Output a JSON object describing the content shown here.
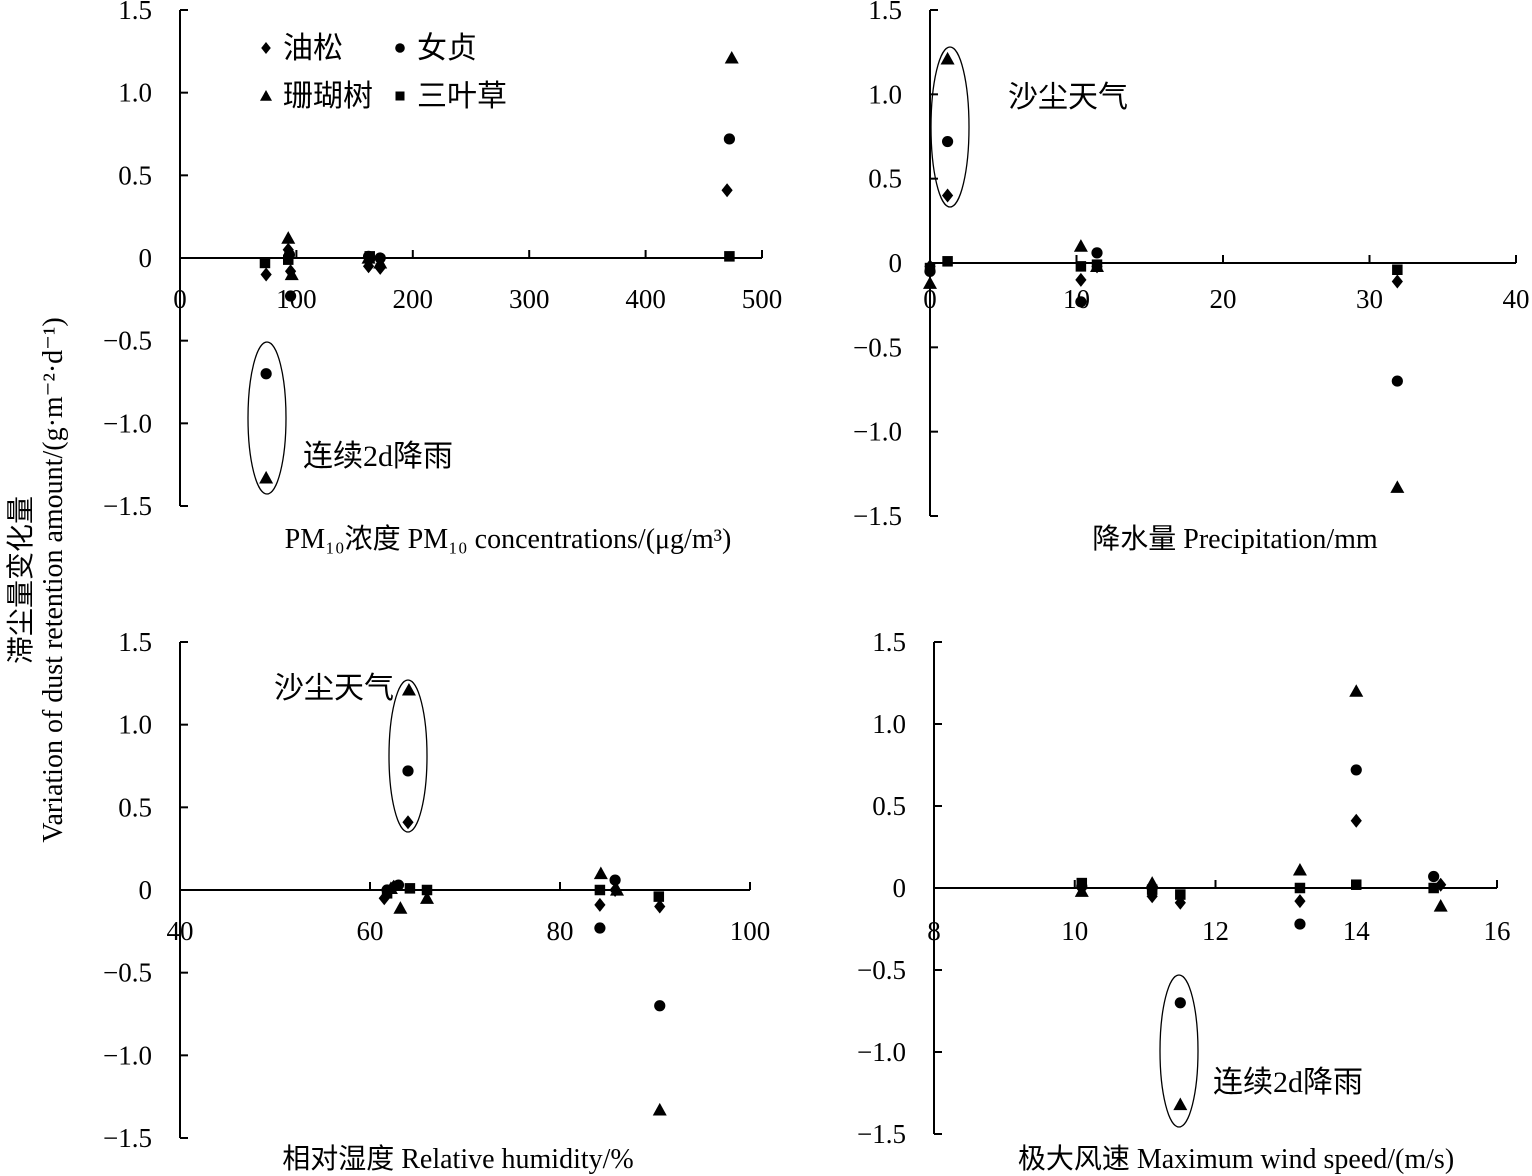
{
  "figure": {
    "ylabel_cn": "滞尘量变化量",
    "ylabel_en": "Variation of dust retention amount/(g·m⁻²·d⁻¹)",
    "legend": [
      {
        "name": "油松",
        "marker": "diamond"
      },
      {
        "name": "女贞",
        "marker": "circle"
      },
      {
        "name": "珊瑚树",
        "marker": "triangle"
      },
      {
        "name": "三叶草",
        "marker": "square"
      }
    ]
  },
  "chart_data": [
    {
      "type": "scatter",
      "xlabel": "PM₁₀浓度 PM₁₀ concentrations/(μg/m³)",
      "xlim": [
        0,
        500
      ],
      "xticks": [
        0,
        100,
        200,
        300,
        400,
        500
      ],
      "ylim": [
        -1.5,
        1.5
      ],
      "yticks": [
        1.5,
        1.0,
        0.5,
        0,
        -0.5,
        -1.0,
        -1.5
      ],
      "ytick_labels": [
        "1.5",
        "1.0",
        "0.5",
        "0",
        "−0.5",
        "−1.0",
        "−1.5"
      ],
      "series": [
        {
          "name": "油松",
          "points": [
            [
              74,
              -0.1
            ],
            [
              93,
              0.05
            ],
            [
              95,
              -0.08
            ],
            [
              162,
              -0.05
            ],
            [
              172,
              -0.06
            ],
            [
              470,
              0.41
            ]
          ]
        },
        {
          "name": "女贞",
          "points": [
            [
              74,
              -0.7
            ],
            [
              95,
              -0.23
            ],
            [
              94,
              0.02
            ],
            [
              162,
              0.01
            ],
            [
              172,
              0.0
            ],
            [
              472,
              0.72
            ]
          ]
        },
        {
          "name": "珊瑚树",
          "points": [
            [
              74,
              -1.33
            ],
            [
              93,
              0.12
            ],
            [
              96,
              -0.1
            ],
            [
              162,
              0.0
            ],
            [
              172,
              -0.03
            ],
            [
              474,
              1.21
            ]
          ]
        },
        {
          "name": "三叶草",
          "points": [
            [
              73,
              -0.03
            ],
            [
              93,
              -0.01
            ],
            [
              163,
              0.01
            ],
            [
              472,
              0.01
            ]
          ]
        }
      ],
      "annotations": [
        {
          "text": "连续2d降雨",
          "type": "ellipse",
          "x": 74,
          "y_range": [
            -1.4,
            -0.5
          ]
        }
      ]
    },
    {
      "type": "scatter",
      "xlabel": "降水量 Precipitation/mm",
      "xlim": [
        0,
        40
      ],
      "xticks": [
        0,
        10,
        20,
        30,
        40
      ],
      "ylim": [
        -1.5,
        1.5
      ],
      "yticks": [
        1.5,
        1.0,
        0.5,
        0,
        -0.5,
        -1.0,
        -1.5
      ],
      "ytick_labels": [
        "1.5",
        "1.0",
        "0.5",
        "0",
        "−0.5",
        "−1.0",
        "−1.5"
      ],
      "series": [
        {
          "name": "油松",
          "points": [
            [
              0,
              -0.02
            ],
            [
              1.2,
              0.4
            ],
            [
              10.3,
              -0.1
            ],
            [
              11.4,
              -0.02
            ],
            [
              31.9,
              -0.11
            ]
          ]
        },
        {
          "name": "女贞",
          "points": [
            [
              0,
              -0.05
            ],
            [
              1.2,
              0.72
            ],
            [
              10.3,
              -0.23
            ],
            [
              11.4,
              0.06
            ],
            [
              31.9,
              -0.7
            ]
          ]
        },
        {
          "name": "珊瑚树",
          "points": [
            [
              0,
              -0.12
            ],
            [
              1.2,
              1.21
            ],
            [
              10.3,
              0.1
            ],
            [
              11.4,
              -0.02
            ],
            [
              31.9,
              -1.33
            ]
          ]
        },
        {
          "name": "三叶草",
          "points": [
            [
              0,
              -0.03
            ],
            [
              1.2,
              0.01
            ],
            [
              10.3,
              -0.02
            ],
            [
              11.4,
              -0.01
            ],
            [
              31.9,
              -0.04
            ]
          ]
        }
      ],
      "annotations": [
        {
          "text": "沙尘天气",
          "type": "ellipse",
          "x": 1.2,
          "y_range": [
            0.35,
            1.25
          ]
        }
      ]
    },
    {
      "type": "scatter",
      "xlabel": "相对湿度 Relative humidity/%",
      "xlim": [
        40,
        100
      ],
      "xticks": [
        40,
        60,
        80,
        100
      ],
      "ylim": [
        -1.5,
        1.5
      ],
      "yticks": [
        1.5,
        1.0,
        0.5,
        0,
        -0.5,
        -1.0,
        -1.5
      ],
      "ytick_labels": [
        "1.5",
        "1.0",
        "0.5",
        "0",
        "−0.5",
        "−1.0",
        "−1.5"
      ],
      "series": [
        {
          "name": "油松",
          "points": [
            [
              61.5,
              -0.05
            ],
            [
              62.5,
              0.02
            ],
            [
              64,
              0.41
            ],
            [
              84.2,
              -0.09
            ],
            [
              85.8,
              0.0
            ],
            [
              90.5,
              -0.1
            ]
          ]
        },
        {
          "name": "女贞",
          "points": [
            [
              61.8,
              0.0
            ],
            [
              63,
              0.03
            ],
            [
              64,
              0.72
            ],
            [
              84.2,
              -0.23
            ],
            [
              85.8,
              0.06
            ],
            [
              90.5,
              -0.7
            ]
          ]
        },
        {
          "name": "珊瑚树",
          "points": [
            [
              62.2,
              0.01
            ],
            [
              63.2,
              -0.11
            ],
            [
              64.1,
              1.21
            ],
            [
              66,
              -0.05
            ],
            [
              84.3,
              0.1
            ],
            [
              86,
              0.0
            ],
            [
              90.5,
              -1.33
            ]
          ]
        },
        {
          "name": "三叶草",
          "points": [
            [
              61.8,
              -0.02
            ],
            [
              64.2,
              0.01
            ],
            [
              66,
              0.0
            ],
            [
              84.2,
              0.0
            ],
            [
              90.4,
              -0.04
            ]
          ]
        }
      ],
      "annotations": [
        {
          "text": "沙尘天气",
          "type": "ellipse",
          "x": 64,
          "y_range": [
            0.35,
            1.25
          ]
        }
      ]
    },
    {
      "type": "scatter",
      "xlabel": "极大风速 Maximum wind speed/(m/s)",
      "xlim": [
        8,
        16
      ],
      "xticks": [
        8,
        10,
        12,
        14,
        16
      ],
      "ylim": [
        -1.5,
        1.5
      ],
      "yticks": [
        1.5,
        1.0,
        0.5,
        0,
        -0.5,
        -1.0,
        -1.5
      ],
      "ytick_labels": [
        "1.5",
        "1.0",
        "0.5",
        "0",
        "−0.5",
        "−1.0",
        "−1.5"
      ],
      "series": [
        {
          "name": "油松",
          "points": [
            [
              10.1,
              0.0
            ],
            [
              11.1,
              -0.05
            ],
            [
              11.5,
              -0.09
            ],
            [
              13.2,
              -0.08
            ],
            [
              14,
              0.41
            ],
            [
              15.2,
              0.02
            ]
          ]
        },
        {
          "name": "女贞",
          "points": [
            [
              10.1,
              0.01
            ],
            [
              11.1,
              0.0
            ],
            [
              11.5,
              -0.7
            ],
            [
              13.2,
              -0.22
            ],
            [
              14,
              0.72
            ],
            [
              15.1,
              0.07
            ]
          ]
        },
        {
          "name": "珊瑚树",
          "points": [
            [
              10.1,
              -0.02
            ],
            [
              11.1,
              0.03
            ],
            [
              11.5,
              -1.32
            ],
            [
              13.2,
              0.11
            ],
            [
              14,
              1.2
            ],
            [
              15.2,
              -0.11
            ]
          ]
        },
        {
          "name": "三叶草",
          "points": [
            [
              10.1,
              0.03
            ],
            [
              11.1,
              -0.01
            ],
            [
              11.5,
              -0.04
            ],
            [
              13.2,
              0.0
            ],
            [
              14,
              0.02
            ],
            [
              15.1,
              0.0
            ]
          ]
        }
      ],
      "annotations": [
        {
          "text": "连续2d降雨",
          "type": "ellipse",
          "x": 11.5,
          "y_range": [
            -1.4,
            -0.5
          ]
        }
      ]
    }
  ]
}
